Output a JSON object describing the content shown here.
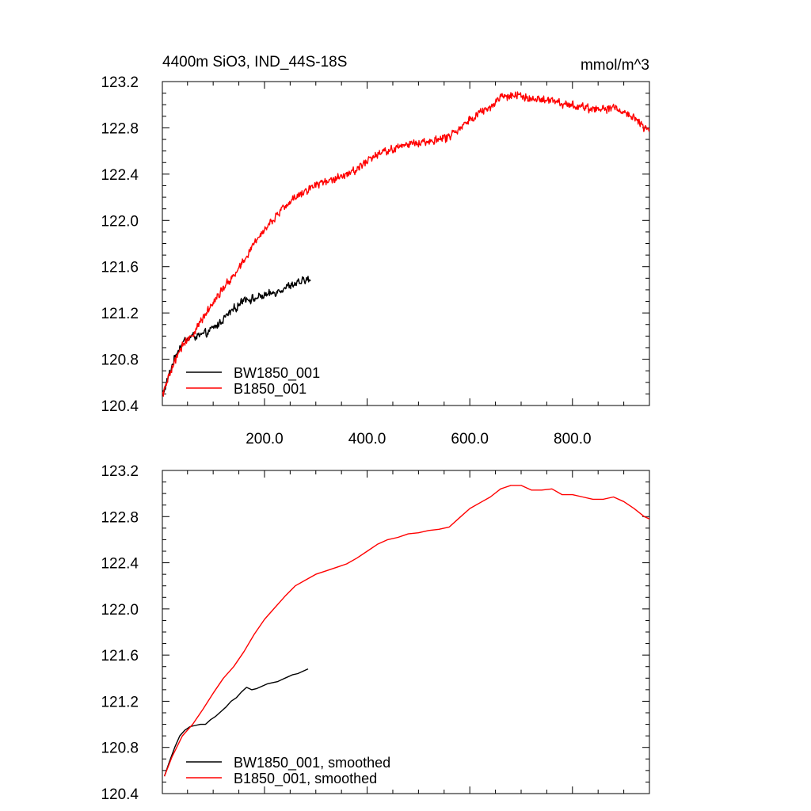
{
  "chart_data": [
    {
      "type": "line",
      "title": "4400m SiO3, IND_44S-18S",
      "units": "mmol/m^3",
      "xlabel": "",
      "ylabel": "",
      "xlim": [
        1,
        950
      ],
      "ylim": [
        120.4,
        123.2
      ],
      "x_ticks": [
        200,
        400,
        600,
        800
      ],
      "x_tick_labels": [
        "200.0",
        "400.0",
        "600.0",
        "800.0"
      ],
      "y_ticks": [
        120.4,
        120.8,
        121.2,
        121.6,
        122.0,
        122.4,
        122.8,
        123.2
      ],
      "y_tick_labels": [
        "120.4",
        "120.8",
        "121.2",
        "121.6",
        "122.0",
        "122.4",
        "122.8",
        "123.2"
      ],
      "grid": false,
      "legend_position": "bottom-left",
      "series": [
        {
          "name": "BW1850_001",
          "color": "#000000",
          "noisy": true,
          "points": [
            [
              1,
              120.49
            ],
            [
              10,
              120.6
            ],
            [
              20,
              120.75
            ],
            [
              30,
              120.87
            ],
            [
              40,
              120.94
            ],
            [
              50,
              120.98
            ],
            [
              60,
              121.0
            ],
            [
              70,
              121.0
            ],
            [
              80,
              121.01
            ],
            [
              90,
              121.03
            ],
            [
              100,
              121.07
            ],
            [
              110,
              121.1
            ],
            [
              120,
              121.15
            ],
            [
              130,
              121.19
            ],
            [
              140,
              121.23
            ],
            [
              150,
              121.27
            ],
            [
              160,
              121.33
            ],
            [
              170,
              121.32
            ],
            [
              180,
              121.32
            ],
            [
              190,
              121.34
            ],
            [
              200,
              121.35
            ],
            [
              210,
              121.36
            ],
            [
              220,
              121.38
            ],
            [
              230,
              121.4
            ],
            [
              240,
              121.42
            ],
            [
              250,
              121.44
            ],
            [
              260,
              121.45
            ],
            [
              270,
              121.46
            ],
            [
              280,
              121.49
            ],
            [
              290,
              121.48
            ]
          ]
        },
        {
          "name": "B1850_001",
          "color": "#ff0000",
          "noisy": true,
          "points": [
            [
              1,
              120.49
            ],
            [
              20,
              120.72
            ],
            [
              40,
              120.92
            ],
            [
              60,
              121.02
            ],
            [
              80,
              121.15
            ],
            [
              100,
              121.3
            ],
            [
              120,
              121.42
            ],
            [
              140,
              121.52
            ],
            [
              160,
              121.65
            ],
            [
              180,
              121.8
            ],
            [
              200,
              121.93
            ],
            [
              220,
              122.02
            ],
            [
              240,
              122.12
            ],
            [
              260,
              122.2
            ],
            [
              280,
              122.26
            ],
            [
              300,
              122.31
            ],
            [
              320,
              122.34
            ],
            [
              340,
              122.37
            ],
            [
              360,
              122.4
            ],
            [
              380,
              122.45
            ],
            [
              400,
              122.51
            ],
            [
              420,
              122.57
            ],
            [
              440,
              122.6
            ],
            [
              460,
              122.63
            ],
            [
              480,
              122.66
            ],
            [
              500,
              122.67
            ],
            [
              520,
              122.69
            ],
            [
              540,
              122.7
            ],
            [
              560,
              122.72
            ],
            [
              580,
              122.8
            ],
            [
              600,
              122.88
            ],
            [
              620,
              122.93
            ],
            [
              640,
              122.98
            ],
            [
              660,
              123.05
            ],
            [
              680,
              123.08
            ],
            [
              700,
              123.08
            ],
            [
              720,
              123.04
            ],
            [
              740,
              123.04
            ],
            [
              760,
              123.05
            ],
            [
              780,
              123.0
            ],
            [
              800,
              123.0
            ],
            [
              820,
              122.98
            ],
            [
              840,
              122.96
            ],
            [
              860,
              122.96
            ],
            [
              880,
              122.98
            ],
            [
              900,
              122.94
            ],
            [
              920,
              122.88
            ],
            [
              940,
              122.81
            ],
            [
              950,
              122.78
            ]
          ]
        }
      ]
    },
    {
      "type": "line",
      "title": "",
      "xlabel": "",
      "ylabel": "",
      "xlim": [
        1,
        950
      ],
      "ylim": [
        120.4,
        123.2
      ],
      "x_ticks": [
        200,
        400,
        600,
        800
      ],
      "x_tick_labels": [
        "",
        "",
        "",
        ""
      ],
      "y_ticks": [
        120.4,
        120.8,
        121.2,
        121.6,
        122.0,
        122.4,
        122.8,
        123.2
      ],
      "y_tick_labels": [
        "120.4",
        "120.8",
        "121.2",
        "121.6",
        "122.0",
        "122.4",
        "122.8",
        "123.2"
      ],
      "grid": false,
      "legend_position": "bottom-left",
      "series": [
        {
          "name": "BW1850_001, smoothed",
          "color": "#000000",
          "noisy": false,
          "points": [
            [
              5,
              120.55
            ],
            [
              15,
              120.68
            ],
            [
              25,
              120.8
            ],
            [
              35,
              120.9
            ],
            [
              45,
              120.95
            ],
            [
              55,
              120.98
            ],
            [
              65,
              120.99
            ],
            [
              75,
              121.0
            ],
            [
              85,
              121.0
            ],
            [
              95,
              121.04
            ],
            [
              105,
              121.07
            ],
            [
              115,
              121.11
            ],
            [
              125,
              121.15
            ],
            [
              135,
              121.2
            ],
            [
              145,
              121.23
            ],
            [
              155,
              121.28
            ],
            [
              165,
              121.32
            ],
            [
              175,
              121.3
            ],
            [
              185,
              121.31
            ],
            [
              195,
              121.33
            ],
            [
              205,
              121.35
            ],
            [
              215,
              121.36
            ],
            [
              225,
              121.37
            ],
            [
              235,
              121.39
            ],
            [
              245,
              121.41
            ],
            [
              255,
              121.43
            ],
            [
              265,
              121.44
            ],
            [
              275,
              121.46
            ],
            [
              285,
              121.48
            ]
          ]
        },
        {
          "name": "B1850_001, smoothed",
          "color": "#ff0000",
          "noisy": false,
          "points": [
            [
              5,
              120.55
            ],
            [
              20,
              120.72
            ],
            [
              40,
              120.9
            ],
            [
              60,
              121.0
            ],
            [
              80,
              121.13
            ],
            [
              100,
              121.27
            ],
            [
              120,
              121.4
            ],
            [
              140,
              121.5
            ],
            [
              160,
              121.63
            ],
            [
              180,
              121.78
            ],
            [
              200,
              121.91
            ],
            [
              220,
              122.01
            ],
            [
              240,
              122.11
            ],
            [
              260,
              122.2
            ],
            [
              280,
              122.25
            ],
            [
              300,
              122.3
            ],
            [
              320,
              122.33
            ],
            [
              340,
              122.36
            ],
            [
              360,
              122.39
            ],
            [
              380,
              122.44
            ],
            [
              400,
              122.5
            ],
            [
              420,
              122.56
            ],
            [
              440,
              122.6
            ],
            [
              460,
              122.62
            ],
            [
              480,
              122.65
            ],
            [
              500,
              122.66
            ],
            [
              520,
              122.68
            ],
            [
              540,
              122.69
            ],
            [
              560,
              122.71
            ],
            [
              580,
              122.79
            ],
            [
              600,
              122.87
            ],
            [
              620,
              122.92
            ],
            [
              640,
              122.97
            ],
            [
              660,
              123.04
            ],
            [
              680,
              123.07
            ],
            [
              700,
              123.07
            ],
            [
              720,
              123.03
            ],
            [
              740,
              123.03
            ],
            [
              760,
              123.04
            ],
            [
              780,
              122.99
            ],
            [
              800,
              122.99
            ],
            [
              820,
              122.97
            ],
            [
              840,
              122.95
            ],
            [
              860,
              122.95
            ],
            [
              880,
              122.97
            ],
            [
              900,
              122.93
            ],
            [
              920,
              122.87
            ],
            [
              940,
              122.8
            ],
            [
              950,
              122.78
            ]
          ]
        }
      ]
    }
  ]
}
